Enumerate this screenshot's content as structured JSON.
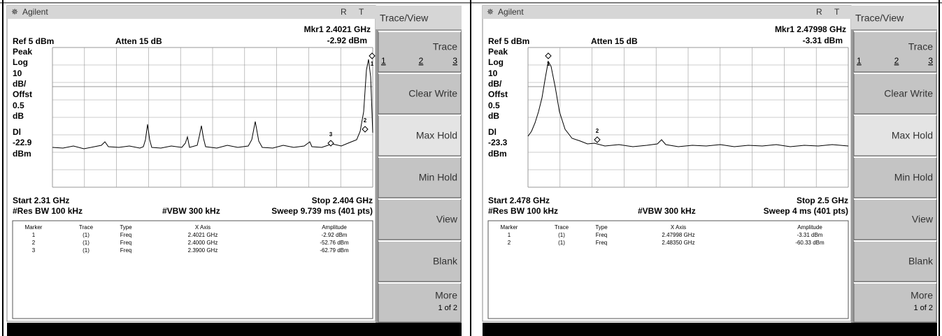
{
  "panels": [
    {
      "brand": "Agilent",
      "status": [
        "R",
        "T"
      ],
      "marker_freq": "Mkr1  2.4021 GHz",
      "marker_amp": "-2.92 dBm",
      "ref": "Ref 5 dBm",
      "atten": "Atten 15 dB",
      "scale_labels": [
        "Peak",
        "Log",
        "10",
        "dB/",
        "Offst",
        "0.5",
        "dB",
        "Dl",
        "-22.9",
        "dBm"
      ],
      "marker_labels": [
        "1",
        "2",
        "3"
      ],
      "start": "Start 2.31 GHz",
      "stop": "Stop 2.404 GHz",
      "res_bw": "#Res BW 100 kHz",
      "vbw": "#VBW 300 kHz",
      "sweep": "Sweep 9.739 ms (401 pts)",
      "table": {
        "headers": [
          "Marker",
          "Trace",
          "Type",
          "X Axis",
          "Amplitude"
        ],
        "rows": [
          [
            "1",
            "(1)",
            "Freq",
            "2.4021 GHz",
            "-2.92 dBm"
          ],
          [
            "2",
            "(1)",
            "Freq",
            "2.4000 GHz",
            "-52.76 dBm"
          ],
          [
            "3",
            "(1)",
            "Freq",
            "2.3900 GHz",
            "-62.79 dBm"
          ]
        ]
      },
      "softkeys": {
        "title": "Trace/View",
        "trace": "Trace",
        "trace_options": [
          "1",
          "2",
          "3"
        ],
        "items": [
          "Clear Write",
          "Max Hold",
          "Min Hold",
          "View",
          "Blank"
        ],
        "more": "More",
        "more_page": "1 of 2"
      }
    },
    {
      "brand": "Agilent",
      "status": [
        "R",
        "T"
      ],
      "marker_freq": "Mkr1  2.47998 GHz",
      "marker_amp": "-3.31 dBm",
      "ref": "Ref 5 dBm",
      "atten": "Atten 15 dB",
      "scale_labels": [
        "Peak",
        "Log",
        "10",
        "dB/",
        "Offst",
        "0.5",
        "dB",
        "Dl",
        "-23.3",
        "dBm"
      ],
      "marker_labels": [
        "1",
        "2"
      ],
      "start": "Start 2.478 GHz",
      "stop": "Stop 2.5 GHz",
      "res_bw": "#Res BW 100 kHz",
      "vbw": "#VBW 300 kHz",
      "sweep": "Sweep 4 ms (401 pts)",
      "table": {
        "headers": [
          "Marker",
          "Trace",
          "Type",
          "X Axis",
          "Amplitude"
        ],
        "rows": [
          [
            "1",
            "(1)",
            "Freq",
            "2.47998 GHz",
            "-3.31 dBm"
          ],
          [
            "2",
            "(1)",
            "Freq",
            "2.48350 GHz",
            "-60.33 dBm"
          ]
        ]
      },
      "softkeys": {
        "title": "Trace/View",
        "trace": "Trace",
        "trace_options": [
          "1",
          "2",
          "3"
        ],
        "items": [
          "Clear Write",
          "Max Hold",
          "Min Hold",
          "View",
          "Blank"
        ],
        "more": "More",
        "more_page": "1 of 2"
      }
    }
  ]
}
